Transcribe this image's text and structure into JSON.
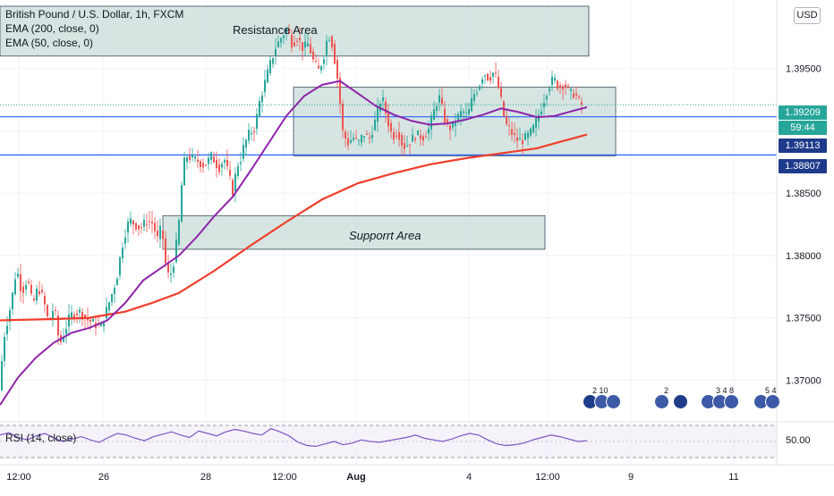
{
  "legend": {
    "title": "British Pound / U.S. Dollar, 1h, FXCM",
    "ema200": "EMA (200, close, 0)",
    "ema50": "EMA (50, close, 0)"
  },
  "currency_badge": "USD",
  "zones": {
    "resistance": "Resistance Area",
    "support": "Supporrt Area"
  },
  "rsi_label": "RSI (14, close)",
  "price_tags": {
    "last_price": "1.39209",
    "countdown": "59:44",
    "line_upper": "1.39113",
    "line_lower": "1.38807"
  },
  "rsi_axis_label": "50.00",
  "events": {
    "group1": "2 10",
    "group2": "2",
    "group3": "3 4 8",
    "group4": "5 4"
  },
  "colors": {
    "up_candle": "#26a69a",
    "down_candle": "#ef5350",
    "ema200": "#f23d2a",
    "ema50": "#8e24aa",
    "zone_fill": "#cfe1dd",
    "hline": "#2962ff",
    "price_tag_green": "#26a69a",
    "price_tag_blue": "#1e3a8a",
    "rsi_line": "#7e57c2"
  },
  "chart_data": {
    "type": "candlestick",
    "title": "British Pound / U.S. Dollar, 1h, FXCM",
    "x_tick_labels": [
      "12:00",
      "26",
      "28",
      "12:00",
      "Aug",
      "4",
      "12:00",
      "9",
      "11"
    ],
    "y_tick_labels": [
      "1.39500",
      "1.39000",
      "1.38500",
      "1.38000",
      "1.37500",
      "1.37000"
    ],
    "ylim": [
      1.3668,
      1.4005
    ],
    "price_path": [
      [
        0,
        1.3688
      ],
      [
        6,
        1.3735
      ],
      [
        14,
        1.3762
      ],
      [
        20,
        1.379
      ],
      [
        26,
        1.377
      ],
      [
        32,
        1.3782
      ],
      [
        38,
        1.376
      ],
      [
        44,
        1.3775
      ],
      [
        50,
        1.3765
      ],
      [
        56,
        1.3745
      ],
      [
        62,
        1.376
      ],
      [
        68,
        1.3728
      ],
      [
        74,
        1.374
      ],
      [
        80,
        1.3752
      ],
      [
        90,
        1.3755
      ],
      [
        100,
        1.3748
      ],
      [
        108,
        1.3745
      ],
      [
        114,
        1.3742
      ],
      [
        120,
        1.3755
      ],
      [
        126,
        1.3768
      ],
      [
        132,
        1.3782
      ],
      [
        136,
        1.38
      ],
      [
        140,
        1.3815
      ],
      [
        146,
        1.3829
      ],
      [
        152,
        1.3825
      ],
      [
        158,
        1.3822
      ],
      [
        166,
        1.3828
      ],
      [
        172,
        1.3826
      ],
      [
        178,
        1.3812
      ],
      [
        182,
        1.3825
      ],
      [
        186,
        1.3795
      ],
      [
        190,
        1.3783
      ],
      [
        194,
        1.3788
      ],
      [
        198,
        1.3806
      ],
      [
        202,
        1.383
      ],
      [
        206,
        1.3872
      ],
      [
        210,
        1.388
      ],
      [
        216,
        1.3878
      ],
      [
        222,
        1.3876
      ],
      [
        230,
        1.3872
      ],
      [
        238,
        1.388
      ],
      [
        246,
        1.387
      ],
      [
        252,
        1.3878
      ],
      [
        258,
        1.3862
      ],
      [
        262,
        1.385
      ],
      [
        266,
        1.3872
      ],
      [
        270,
        1.3876
      ],
      [
        274,
        1.3888
      ],
      [
        280,
        1.3898
      ],
      [
        286,
        1.3902
      ],
      [
        292,
        1.3925
      ],
      [
        298,
        1.394
      ],
      [
        304,
        1.3955
      ],
      [
        310,
        1.3968
      ],
      [
        316,
        1.3975
      ],
      [
        322,
        1.3982
      ],
      [
        328,
        1.397
      ],
      [
        334,
        1.3975
      ],
      [
        340,
        1.3966
      ],
      [
        346,
        1.397
      ],
      [
        352,
        1.3955
      ],
      [
        358,
        1.3948
      ],
      [
        364,
        1.3962
      ],
      [
        368,
        1.3978
      ],
      [
        372,
        1.3972
      ],
      [
        376,
        1.3955
      ],
      [
        380,
        1.3935
      ],
      [
        384,
        1.39
      ],
      [
        390,
        1.389
      ],
      [
        396,
        1.3895
      ],
      [
        402,
        1.389
      ],
      [
        408,
        1.3898
      ],
      [
        414,
        1.3893
      ],
      [
        420,
        1.3906
      ],
      [
        428,
        1.3928
      ],
      [
        434,
        1.391
      ],
      [
        440,
        1.3895
      ],
      [
        446,
        1.39
      ],
      [
        452,
        1.3887
      ],
      [
        458,
        1.389
      ],
      [
        466,
        1.3897
      ],
      [
        474,
        1.3895
      ],
      [
        480,
        1.39
      ],
      [
        486,
        1.3915
      ],
      [
        492,
        1.3928
      ],
      [
        500,
        1.3905
      ],
      [
        506,
        1.3902
      ],
      [
        512,
        1.391
      ],
      [
        518,
        1.3916
      ],
      [
        524,
        1.3912
      ],
      [
        530,
        1.3928
      ],
      [
        536,
        1.3935
      ],
      [
        542,
        1.3947
      ],
      [
        548,
        1.3942
      ],
      [
        554,
        1.3948
      ],
      [
        560,
        1.393
      ],
      [
        566,
        1.3906
      ],
      [
        572,
        1.39
      ],
      [
        578,
        1.3893
      ],
      [
        584,
        1.3892
      ],
      [
        590,
        1.3895
      ],
      [
        596,
        1.39
      ],
      [
        602,
        1.391
      ],
      [
        608,
        1.3922
      ],
      [
        614,
        1.3935
      ],
      [
        620,
        1.3942
      ],
      [
        626,
        1.3935
      ],
      [
        632,
        1.3938
      ],
      [
        638,
        1.393
      ],
      [
        644,
        1.393
      ],
      [
        650,
        1.3921
      ]
    ],
    "ema50": [
      [
        0,
        1.368
      ],
      [
        20,
        1.3702
      ],
      [
        40,
        1.3718
      ],
      [
        60,
        1.373
      ],
      [
        80,
        1.3738
      ],
      [
        100,
        1.3742
      ],
      [
        120,
        1.3748
      ],
      [
        140,
        1.3762
      ],
      [
        160,
        1.378
      ],
      [
        180,
        1.379
      ],
      [
        200,
        1.38
      ],
      [
        220,
        1.3815
      ],
      [
        240,
        1.3832
      ],
      [
        260,
        1.3847
      ],
      [
        280,
        1.3868
      ],
      [
        300,
        1.389
      ],
      [
        320,
        1.3912
      ],
      [
        340,
        1.3928
      ],
      [
        360,
        1.3937
      ],
      [
        380,
        1.394
      ],
      [
        400,
        1.393
      ],
      [
        420,
        1.392
      ],
      [
        440,
        1.3913
      ],
      [
        460,
        1.3908
      ],
      [
        480,
        1.3905
      ],
      [
        500,
        1.3906
      ],
      [
        520,
        1.3909
      ],
      [
        540,
        1.3913
      ],
      [
        560,
        1.3918
      ],
      [
        580,
        1.3915
      ],
      [
        600,
        1.3911
      ],
      [
        620,
        1.3912
      ],
      [
        640,
        1.3916
      ],
      [
        656,
        1.3919
      ]
    ],
    "ema200": [
      [
        0,
        1.3748
      ],
      [
        60,
        1.3749
      ],
      [
        100,
        1.375
      ],
      [
        140,
        1.3755
      ],
      [
        170,
        1.3762
      ],
      [
        200,
        1.377
      ],
      [
        240,
        1.3788
      ],
      [
        280,
        1.3808
      ],
      [
        320,
        1.3827
      ],
      [
        360,
        1.3845
      ],
      [
        400,
        1.3858
      ],
      [
        440,
        1.3866
      ],
      [
        480,
        1.3873
      ],
      [
        520,
        1.3878
      ],
      [
        560,
        1.3882
      ],
      [
        600,
        1.3886
      ],
      [
        630,
        1.3892
      ],
      [
        656,
        1.3897
      ]
    ],
    "resistance_area": {
      "y_top": 1.4,
      "y_bottom": 1.396
    },
    "consolidation_box": {
      "y_top": 1.3935,
      "y_bottom": 1.388
    },
    "support_area": {
      "y_top": 1.3832,
      "y_bottom": 1.3805
    },
    "horizontal_lines": [
      1.39113,
      1.38807
    ],
    "last_price": 1.39209,
    "rsi": {
      "label": "RSI (14, close)",
      "level_mid": 50.0,
      "values": [
        58,
        61,
        55,
        52,
        57,
        60,
        54,
        50,
        53,
        56,
        52,
        49,
        55,
        60,
        58,
        54,
        51,
        56,
        59,
        62,
        58,
        55,
        63,
        60,
        57,
        62,
        65,
        63,
        60,
        58,
        66,
        62,
        57,
        49,
        45,
        44,
        47,
        50,
        46,
        48,
        52,
        50,
        49,
        51,
        53,
        55,
        58,
        54,
        52,
        50,
        53,
        57,
        60,
        58,
        52,
        47,
        45,
        46,
        48,
        52,
        55,
        58,
        56,
        53,
        50,
        51
      ]
    }
  }
}
